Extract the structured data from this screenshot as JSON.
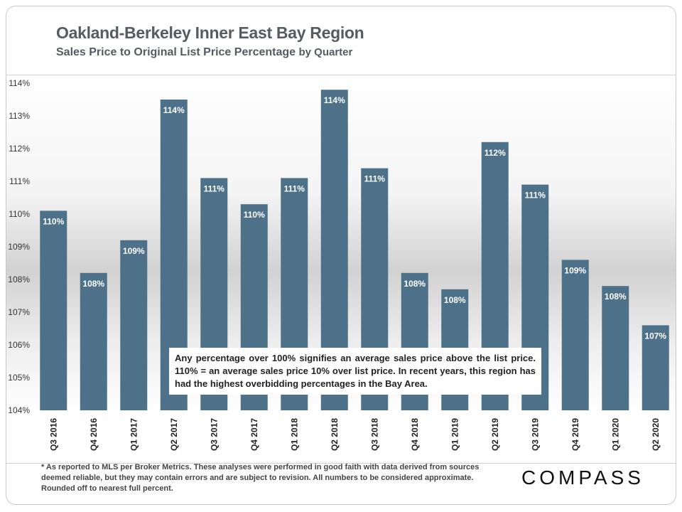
{
  "header": {
    "title": "Oakland-Berkeley Inner East Bay Region",
    "subtitle": "Sales Price to Original List Price Percentage",
    "subtitle_suffix": "by Quarter"
  },
  "chart_data": {
    "type": "bar",
    "categories": [
      "Q3 2016",
      "Q4 2016",
      "Q1 2017",
      "Q2 2017",
      "Q3 2017",
      "Q4 2017",
      "Q1 2018",
      "Q2 2018",
      "Q3 2018",
      "Q4 2018",
      "Q1 2019",
      "Q2 2019",
      "Q3 2019",
      "Q4 2019",
      "Q1 2020",
      "Q2 2020"
    ],
    "values": [
      110.1,
      108.2,
      109.2,
      113.5,
      111.1,
      110.3,
      111.1,
      113.8,
      111.4,
      108.2,
      107.7,
      112.2,
      110.9,
      108.6,
      107.8,
      106.6
    ],
    "data_labels": [
      "110%",
      "108%",
      "109%",
      "114%",
      "111%",
      "110%",
      "111%",
      "114%",
      "111%",
      "108%",
      "108%",
      "112%",
      "111%",
      "109%",
      "108%",
      "107%"
    ],
    "ylim": [
      104,
      114
    ],
    "yticks": [
      104,
      105,
      106,
      107,
      108,
      109,
      110,
      111,
      112,
      113,
      114
    ],
    "ytick_labels": [
      "104%",
      "105%",
      "106%",
      "107%",
      "108%",
      "109%",
      "110%",
      "111%",
      "112%",
      "113%",
      "114%"
    ],
    "bar_color": "#4d7188",
    "grid": false,
    "legend": "none"
  },
  "note": "Any percentage over 100% signifies an average sales price above the list price. 110% = an average sales price 10% over list price. In recent years, this region has had the highest overbidding percentages in the Bay Area.",
  "footnote": "* As reported to MLS per Broker Metrics. These analyses were performed in good faith with data derived from sources deemed reliable, but they may contain errors and are subject to revision. All numbers to be considered approximate. Rounded off to nearest full percent.",
  "logo": "COMPASS"
}
